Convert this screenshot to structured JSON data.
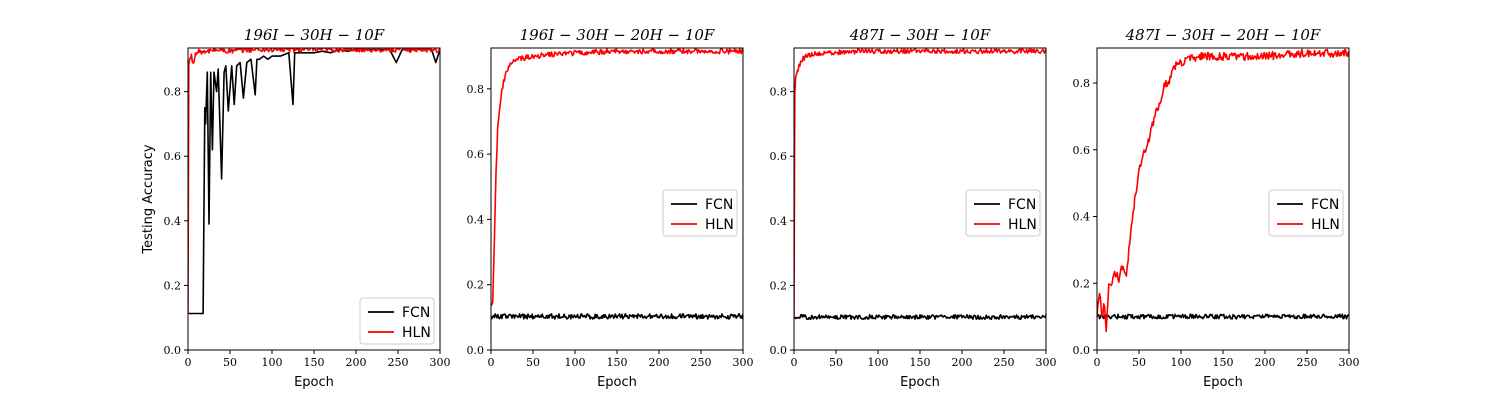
{
  "chart_data": [
    {
      "type": "line",
      "title": "196I − 30H − 10F",
      "xlabel": "Epoch",
      "ylabel": "Testing Accuracy",
      "xlim": [
        0,
        300
      ],
      "ylim": [
        0,
        0.935
      ],
      "xticks": [
        0,
        50,
        100,
        150,
        200,
        250,
        300
      ],
      "yticks": [
        0.0,
        0.2,
        0.4,
        0.6,
        0.8
      ],
      "legend_position": "lower-right",
      "series": [
        {
          "name": "FCN",
          "color": "#000000",
          "x": [
            0,
            18,
            19,
            20,
            21,
            23,
            25,
            27,
            29,
            31,
            34,
            36,
            40,
            43,
            45,
            48,
            52,
            55,
            58,
            62,
            66,
            70,
            75,
            80,
            82,
            85,
            90,
            95,
            100,
            110,
            120,
            125,
            127,
            130,
            140,
            150,
            160,
            170,
            180,
            190,
            200,
            220,
            240,
            248,
            255,
            270,
            290,
            295,
            300
          ],
          "y": [
            0.113,
            0.113,
            0.45,
            0.75,
            0.7,
            0.86,
            0.39,
            0.86,
            0.62,
            0.86,
            0.8,
            0.87,
            0.53,
            0.86,
            0.88,
            0.74,
            0.88,
            0.76,
            0.88,
            0.89,
            0.78,
            0.89,
            0.9,
            0.79,
            0.9,
            0.9,
            0.91,
            0.9,
            0.91,
            0.91,
            0.92,
            0.76,
            0.92,
            0.92,
            0.92,
            0.92,
            0.925,
            0.92,
            0.93,
            0.925,
            0.93,
            0.93,
            0.93,
            0.89,
            0.93,
            0.93,
            0.93,
            0.89,
            0.93
          ]
        },
        {
          "name": "HLN",
          "color": "#ff0000",
          "x": [
            0,
            1,
            2,
            4,
            6,
            10,
            15,
            20,
            30,
            50,
            70,
            100,
            150,
            200,
            250,
            300
          ],
          "y": [
            0.113,
            0.88,
            0.9,
            0.91,
            0.89,
            0.92,
            0.925,
            0.92,
            0.93,
            0.925,
            0.93,
            0.93,
            0.93,
            0.93,
            0.93,
            0.93
          ],
          "noise": 0.008
        }
      ]
    },
    {
      "type": "line",
      "title": "196I − 30H − 20H − 10F",
      "xlabel": "Epoch",
      "ylabel": "",
      "xlim": [
        0,
        300
      ],
      "ylim": [
        0,
        0.925
      ],
      "xticks": [
        0,
        50,
        100,
        150,
        200,
        250,
        300
      ],
      "yticks": [
        0.0,
        0.2,
        0.4,
        0.6,
        0.8
      ],
      "legend_position": "center-right",
      "series": [
        {
          "name": "FCN",
          "color": "#000000",
          "x": [
            0,
            300
          ],
          "y": [
            0.103,
            0.103
          ],
          "noise": 0.008
        },
        {
          "name": "HLN",
          "color": "#ff0000",
          "x": [
            0,
            2,
            4,
            6,
            8,
            10,
            12,
            15,
            18,
            22,
            26,
            30,
            40,
            50,
            70,
            100,
            150,
            200,
            250,
            300
          ],
          "y": [
            0.14,
            0.15,
            0.33,
            0.55,
            0.68,
            0.73,
            0.78,
            0.82,
            0.85,
            0.87,
            0.88,
            0.89,
            0.895,
            0.9,
            0.905,
            0.91,
            0.915,
            0.915,
            0.915,
            0.915
          ],
          "noise": 0.008
        }
      ]
    },
    {
      "type": "line",
      "title": "487I − 30H − 10F",
      "xlabel": "Epoch",
      "ylabel": "",
      "xlim": [
        0,
        300
      ],
      "ylim": [
        0,
        0.935
      ],
      "xticks": [
        0,
        50,
        100,
        150,
        200,
        250,
        300
      ],
      "yticks": [
        0.0,
        0.2,
        0.4,
        0.6,
        0.8
      ],
      "legend_position": "center-right",
      "series": [
        {
          "name": "FCN",
          "color": "#000000",
          "x": [
            0,
            300
          ],
          "y": [
            0.102,
            0.102
          ],
          "noise": 0.007
        },
        {
          "name": "HLN",
          "color": "#ff0000",
          "x": [
            0,
            1,
            2,
            4,
            6,
            10,
            15,
            20,
            40,
            80,
            150,
            200,
            300
          ],
          "y": [
            0.1,
            0.79,
            0.84,
            0.86,
            0.88,
            0.9,
            0.91,
            0.915,
            0.92,
            0.925,
            0.925,
            0.925,
            0.925
          ],
          "noise": 0.007
        }
      ]
    },
    {
      "type": "line",
      "title": "487I − 30H − 20H − 10F",
      "xlabel": "Epoch",
      "ylabel": "",
      "xlim": [
        0,
        300
      ],
      "ylim": [
        0,
        0.905
      ],
      "xticks": [
        0,
        50,
        100,
        150,
        200,
        250,
        300
      ],
      "yticks": [
        0.0,
        0.2,
        0.4,
        0.6,
        0.8
      ],
      "legend_position": "center-right",
      "series": [
        {
          "name": "FCN",
          "color": "#000000",
          "x": [
            0,
            300
          ],
          "y": [
            0.1,
            0.1
          ],
          "noise": 0.007
        },
        {
          "name": "HLN",
          "color": "#ff0000",
          "x": [
            0,
            3,
            6,
            9,
            11,
            14,
            18,
            22,
            26,
            30,
            35,
            40,
            45,
            50,
            55,
            60,
            65,
            70,
            75,
            80,
            85,
            90,
            95,
            100,
            110,
            120,
            150,
            200,
            250,
            300
          ],
          "y": [
            0.1,
            0.17,
            0.1,
            0.14,
            0.05,
            0.19,
            0.21,
            0.23,
            0.21,
            0.25,
            0.22,
            0.36,
            0.45,
            0.54,
            0.58,
            0.62,
            0.66,
            0.72,
            0.74,
            0.8,
            0.8,
            0.84,
            0.86,
            0.86,
            0.87,
            0.88,
            0.88,
            0.88,
            0.89,
            0.89
          ],
          "noise": 0.012
        }
      ]
    }
  ]
}
